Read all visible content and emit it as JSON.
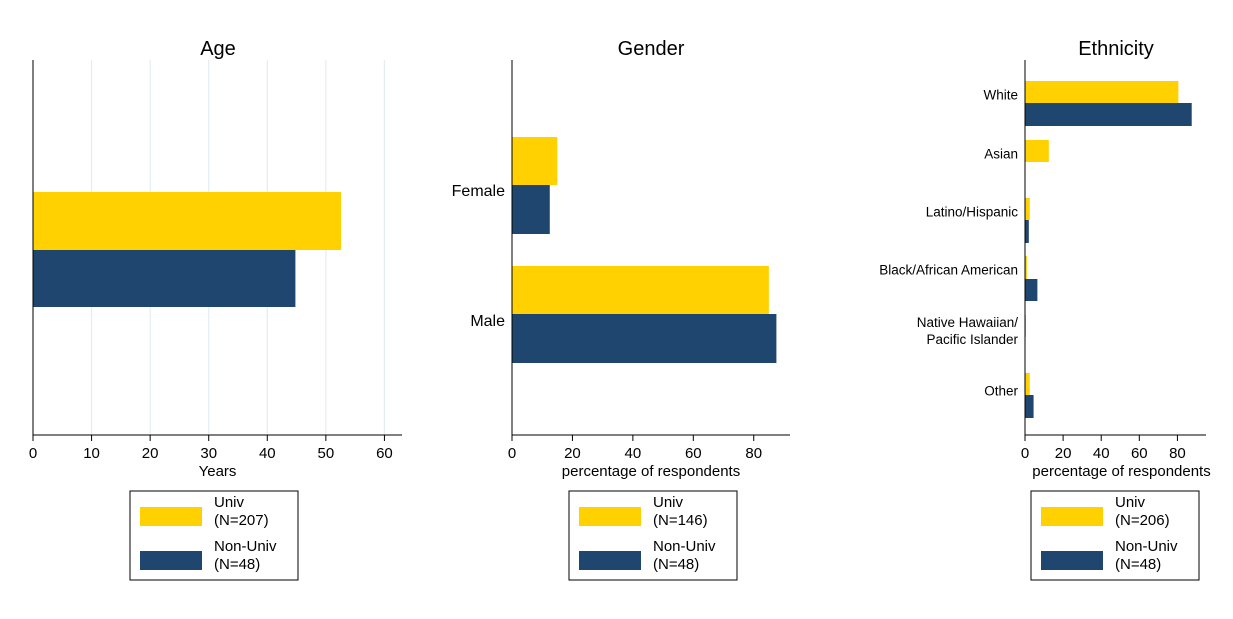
{
  "colors": {
    "univ": "#FFD100",
    "nonuniv": "#1E466E",
    "grid": "#E6EDF1",
    "axis": "#000000",
    "background": "#FFFFFF"
  },
  "chart_data": [
    {
      "type": "bar",
      "orientation": "horizontal",
      "title": "Age",
      "xlabel": "Years",
      "ylabel": "",
      "xlim": [
        0,
        63
      ],
      "xticks": [
        0,
        10,
        20,
        30,
        40,
        50,
        60
      ],
      "grid": true,
      "categories": [
        ""
      ],
      "series": [
        {
          "name": "Univ",
          "values": [
            52.6
          ]
        },
        {
          "name": "Non-Univ",
          "values": [
            44.8
          ]
        }
      ],
      "legend": {
        "position": "bottom",
        "entries": [
          {
            "line1": "Univ",
            "line2": "(N=207)"
          },
          {
            "line1": "Non-Univ",
            "line2": "(N=48)"
          }
        ]
      }
    },
    {
      "type": "bar",
      "orientation": "horizontal",
      "title": "Gender",
      "xlabel": "percentage of respondents",
      "ylabel": "",
      "xlim": [
        0,
        92
      ],
      "xticks": [
        0,
        20,
        40,
        60,
        80
      ],
      "grid": false,
      "categories": [
        "Female",
        "Male"
      ],
      "series": [
        {
          "name": "Univ",
          "values": [
            15,
            85
          ]
        },
        {
          "name": "Non-Univ",
          "values": [
            12.5,
            87.5
          ]
        }
      ],
      "legend": {
        "position": "bottom",
        "entries": [
          {
            "line1": "Univ",
            "line2": "(N=146)"
          },
          {
            "line1": "Non-Univ",
            "line2": "(N=48)"
          }
        ]
      }
    },
    {
      "type": "bar",
      "orientation": "horizontal",
      "title": "Ethnicity",
      "xlabel": "percentage of respondents",
      "ylabel": "",
      "xlim": [
        0,
        95
      ],
      "xticks": [
        0,
        20,
        40,
        60,
        80
      ],
      "grid": false,
      "categories": [
        "White",
        "Asian",
        "Latino/Hispanic",
        "Black/African American",
        "Native Hawaiian/\nPacific Islander",
        "Other"
      ],
      "series": [
        {
          "name": "Univ",
          "values": [
            80.5,
            12.5,
            2.5,
            1,
            0.5,
            2.5
          ]
        },
        {
          "name": "Non-Univ",
          "values": [
            87.5,
            0,
            2,
            6.5,
            0,
            4.5
          ]
        }
      ],
      "legend": {
        "position": "bottom",
        "entries": [
          {
            "line1": "Univ",
            "line2": "(N=206)"
          },
          {
            "line1": "Non-Univ",
            "line2": "(N=48)"
          }
        ]
      }
    }
  ]
}
